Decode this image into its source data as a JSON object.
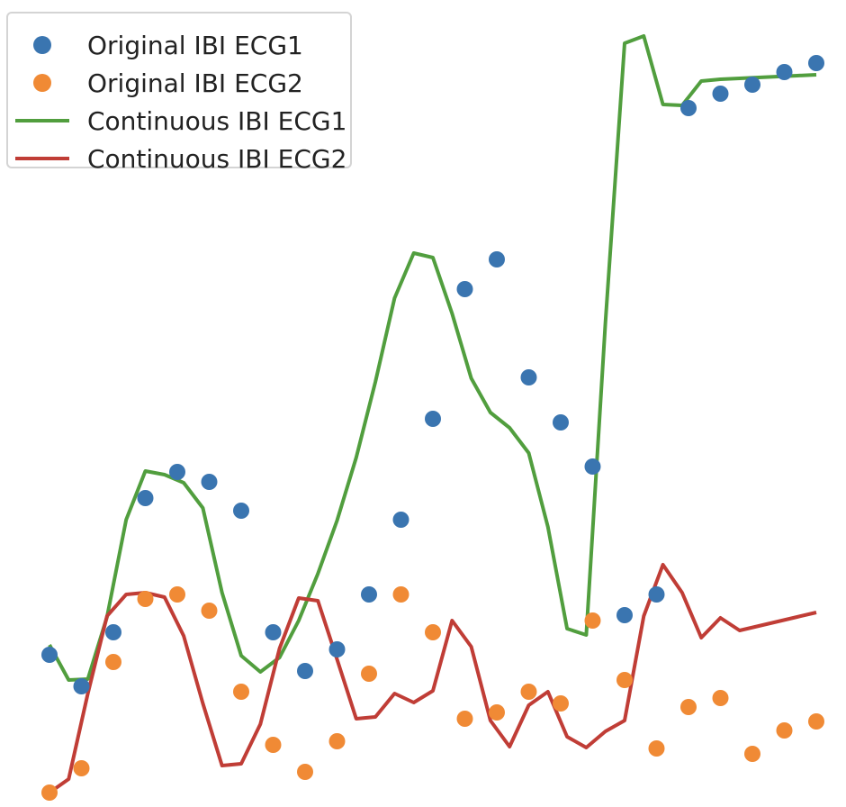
{
  "chart_data": {
    "type": "line",
    "title": "",
    "xlabel": "",
    "ylabel": "",
    "grid": false,
    "axes_visible": false,
    "legend_position": "top-left",
    "series": [
      {
        "name": "Original IBI ECG1",
        "kind": "markers",
        "color": "#3a75b0",
        "x": [
          1.0,
          2.0,
          3.0,
          4.0,
          5.0,
          6.0,
          7.0,
          8.0,
          9.0,
          10.0,
          11.0,
          12.0,
          13.0,
          14.0,
          15.0,
          16.0,
          17.0,
          18.0,
          19.0,
          20.0,
          21.0,
          22.0,
          23.0,
          24.0,
          25.0
        ],
        "y": [
          0.727,
          0.762,
          0.702,
          0.553,
          0.524,
          0.535,
          0.567,
          0.702,
          0.745,
          0.721,
          0.66,
          0.577,
          0.465,
          0.321,
          0.288,
          0.419,
          0.469,
          0.518,
          0.683,
          0.66,
          0.12,
          0.104,
          0.094,
          0.08,
          0.07
        ]
      },
      {
        "name": "Original IBI ECG2",
        "kind": "markers",
        "color": "#f08a35",
        "x": [
          1.0,
          2.0,
          3.0,
          4.0,
          5.0,
          6.0,
          7.0,
          8.0,
          9.0,
          10.0,
          11.0,
          12.0,
          13.0,
          14.0,
          15.0,
          16.0,
          17.0,
          18.0,
          19.0,
          20.0,
          21.0,
          22.0,
          23.0,
          24.0,
          25.0
        ],
        "y": [
          0.88,
          0.853,
          0.735,
          0.665,
          0.66,
          0.678,
          0.768,
          0.827,
          0.857,
          0.823,
          0.748,
          0.66,
          0.702,
          0.798,
          0.791,
          0.768,
          0.781,
          0.689,
          0.755,
          0.831,
          0.785,
          0.775,
          0.837,
          0.811,
          0.801
        ]
      },
      {
        "name": "Continuous IBI ECG1",
        "kind": "line",
        "color": "#519e3e",
        "x": [
          1.0,
          1.6,
          2.2,
          2.8,
          3.4,
          4.0,
          4.6,
          5.2,
          5.8,
          6.4,
          7.0,
          7.6,
          8.2,
          8.8,
          9.4,
          10.0,
          10.6,
          11.2,
          11.8,
          12.4,
          13.0,
          13.6,
          14.2,
          14.8,
          15.4,
          16.0,
          16.6,
          17.2,
          17.8,
          18.4,
          19.0,
          19.6,
          20.2,
          20.8,
          21.4,
          22.0,
          22.6,
          23.2,
          23.8,
          24.4,
          25.0
        ],
        "y": [
          0.716,
          0.755,
          0.754,
          0.685,
          0.577,
          0.523,
          0.527,
          0.536,
          0.564,
          0.658,
          0.728,
          0.746,
          0.73,
          0.689,
          0.637,
          0.578,
          0.508,
          0.424,
          0.331,
          0.281,
          0.286,
          0.348,
          0.42,
          0.458,
          0.475,
          0.503,
          0.585,
          0.698,
          0.705,
          0.358,
          0.048,
          0.04,
          0.116,
          0.117,
          0.09,
          0.088,
          0.087,
          0.086,
          0.085,
          0.084,
          0.083
        ]
      },
      {
        "name": "Continuous IBI ECG2",
        "kind": "line",
        "color": "#c03d36",
        "x": [
          1.0,
          1.6,
          2.2,
          2.8,
          3.4,
          4.0,
          4.6,
          5.2,
          5.8,
          6.4,
          7.0,
          7.6,
          8.2,
          8.8,
          9.4,
          10.0,
          10.6,
          11.2,
          11.8,
          12.4,
          13.0,
          13.6,
          14.2,
          14.8,
          15.4,
          16.0,
          16.6,
          17.2,
          17.8,
          18.4,
          19.0,
          19.6,
          20.2,
          20.8,
          21.4,
          22.0,
          22.6,
          23.2,
          23.8,
          24.4,
          25.0
        ],
        "y": [
          0.88,
          0.865,
          0.77,
          0.684,
          0.66,
          0.658,
          0.663,
          0.706,
          0.781,
          0.85,
          0.848,
          0.804,
          0.72,
          0.664,
          0.667,
          0.732,
          0.798,
          0.796,
          0.77,
          0.78,
          0.767,
          0.689,
          0.718,
          0.8,
          0.829,
          0.783,
          0.768,
          0.818,
          0.83,
          0.812,
          0.8,
          0.684,
          0.627,
          0.658,
          0.708,
          0.686,
          0.7,
          0.695,
          0.69,
          0.685,
          0.68
        ]
      }
    ]
  },
  "legend": {
    "items": [
      {
        "label": "Original IBI ECG1",
        "kind": "marker",
        "color": "#3a75b0"
      },
      {
        "label": "Original IBI ECG2",
        "kind": "marker",
        "color": "#f08a35"
      },
      {
        "label": "Continuous IBI ECG1",
        "kind": "line",
        "color": "#519e3e"
      },
      {
        "label": "Continuous IBI ECG2",
        "kind": "line",
        "color": "#c03d36"
      }
    ]
  }
}
